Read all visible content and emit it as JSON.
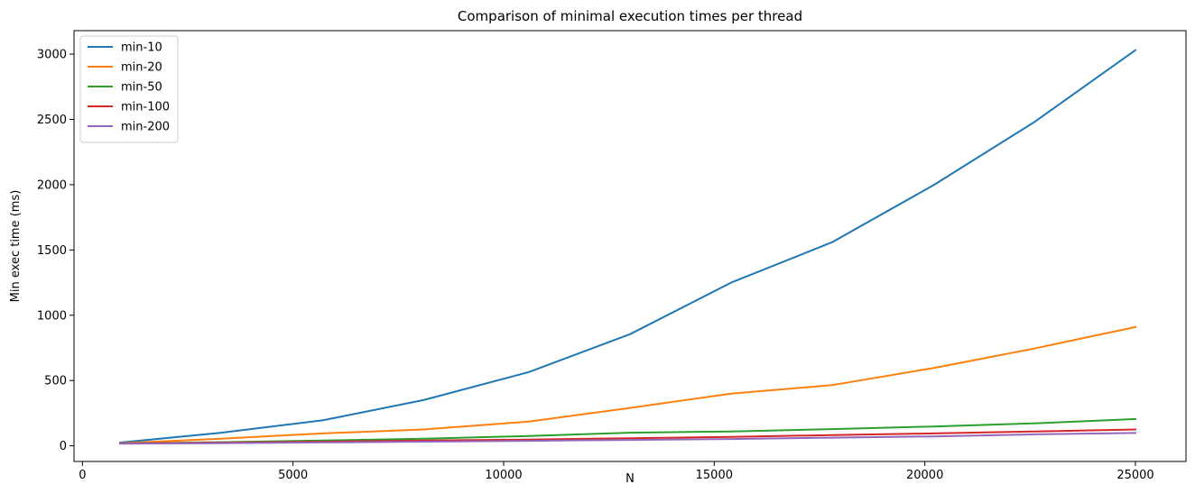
{
  "chart_data": {
    "type": "line",
    "title": "Comparison of minimal execution times per thread",
    "xlabel": "N",
    "ylabel": "Min exec time (ms)",
    "xlim": [
      -200,
      26200
    ],
    "ylim": [
      -120,
      3180
    ],
    "xticks": [
      0,
      5000,
      10000,
      15000,
      20000,
      25000
    ],
    "xtick_labels": [
      "0",
      "5000",
      "10000",
      "15000",
      "20000",
      "25000"
    ],
    "yticks": [
      0,
      500,
      1000,
      1500,
      2000,
      2500,
      3000
    ],
    "ytick_labels": [
      "0",
      "500",
      "1000",
      "1500",
      "2000",
      "2500",
      "3000"
    ],
    "grid": false,
    "legend_position": "top-left",
    "x": [
      900,
      3300,
      5700,
      8100,
      10600,
      13000,
      15400,
      17800,
      20200,
      22600,
      25000
    ],
    "series": [
      {
        "name": "min-10",
        "color": "#1f77b4",
        "values": [
          25,
          100,
          195,
          350,
          565,
          855,
          1250,
          1560,
          1995,
          2480,
          3030
        ]
      },
      {
        "name": "min-20",
        "color": "#ff7f0e",
        "values": [
          20,
          55,
          95,
          125,
          185,
          290,
          400,
          465,
          595,
          745,
          910
        ]
      },
      {
        "name": "min-50",
        "color": "#2ca02c",
        "values": [
          18,
          28,
          40,
          55,
          75,
          100,
          110,
          128,
          148,
          172,
          205
        ]
      },
      {
        "name": "min-100",
        "color": "#d62728",
        "values": [
          18,
          24,
          32,
          40,
          48,
          58,
          68,
          82,
          95,
          110,
          125
        ]
      },
      {
        "name": "min-200",
        "color": "#9467bd",
        "values": [
          16,
          20,
          26,
          32,
          38,
          45,
          52,
          62,
          72,
          88,
          98
        ]
      }
    ]
  }
}
